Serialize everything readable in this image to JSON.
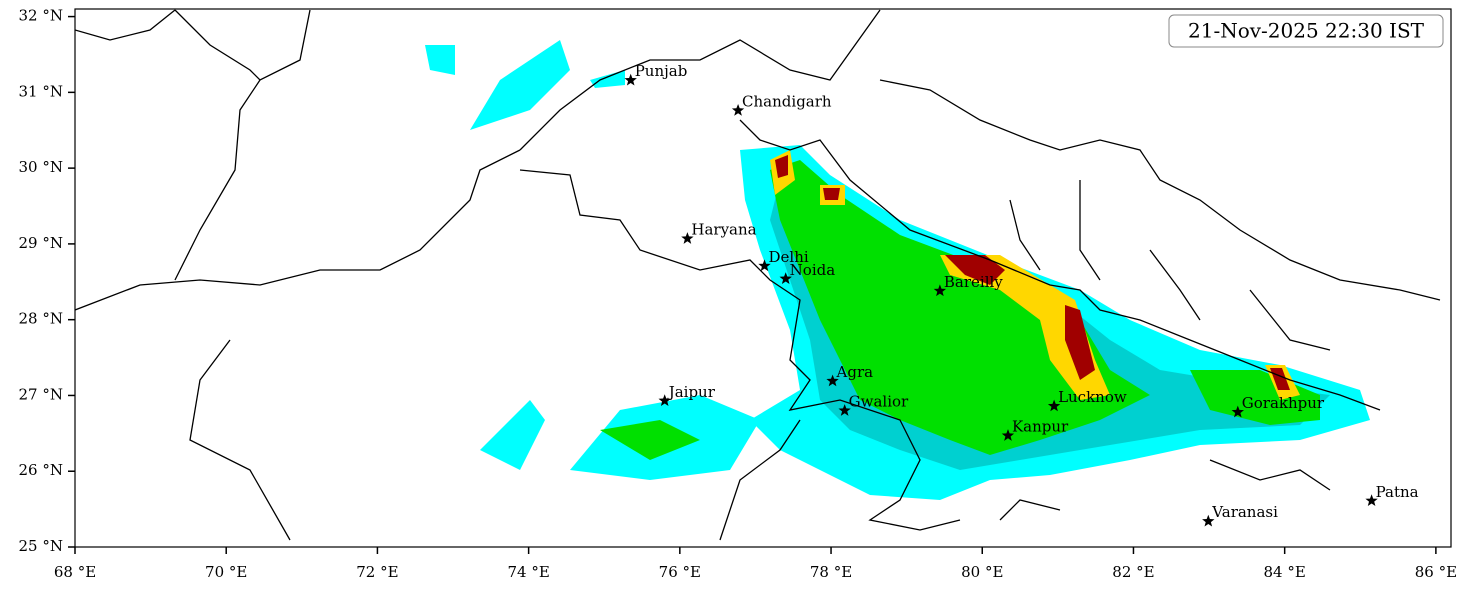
{
  "title": "21-Nov-2025 22:30 IST",
  "xlim": [
    68,
    86.2
  ],
  "ylim": [
    25,
    32.1
  ],
  "xticks": [
    {
      "value": 68,
      "label": "68 °E"
    },
    {
      "value": 70,
      "label": "70 °E"
    },
    {
      "value": 72,
      "label": "72 °E"
    },
    {
      "value": 74,
      "label": "74 °E"
    },
    {
      "value": 76,
      "label": "76 °E"
    },
    {
      "value": 78,
      "label": "78 °E"
    },
    {
      "value": 80,
      "label": "80 °E"
    },
    {
      "value": 82,
      "label": "82 °E"
    },
    {
      "value": 84,
      "label": "84 °E"
    },
    {
      "value": 86,
      "label": "86 °E"
    }
  ],
  "yticks": [
    {
      "value": 25,
      "label": "25 °N"
    },
    {
      "value": 26,
      "label": "26 °N"
    },
    {
      "value": 27,
      "label": "27 °N"
    },
    {
      "value": 28,
      "label": "28 °N"
    },
    {
      "value": 29,
      "label": "29 °N"
    },
    {
      "value": 30,
      "label": "30 °N"
    },
    {
      "value": 31,
      "label": "31 °N"
    },
    {
      "value": 32,
      "label": "32 °N"
    }
  ],
  "cities": [
    {
      "name": "Punjab",
      "lon": 75.35,
      "lat": 31.16
    },
    {
      "name": "Chandigarh",
      "lon": 76.77,
      "lat": 30.76
    },
    {
      "name": "Haryana",
      "lon": 76.1,
      "lat": 29.07
    },
    {
      "name": "Delhi",
      "lon": 77.12,
      "lat": 28.71
    },
    {
      "name": "Noida",
      "lon": 77.4,
      "lat": 28.54
    },
    {
      "name": "Bareilly",
      "lon": 79.44,
      "lat": 28.38
    },
    {
      "name": "Agra",
      "lon": 78.02,
      "lat": 27.19
    },
    {
      "name": "Jaipur",
      "lon": 75.8,
      "lat": 26.93
    },
    {
      "name": "Gwalior",
      "lon": 78.18,
      "lat": 26.8
    },
    {
      "name": "Lucknow",
      "lon": 80.95,
      "lat": 26.86
    },
    {
      "name": "Kanpur",
      "lon": 80.34,
      "lat": 26.47
    },
    {
      "name": "Gorakhpur",
      "lon": 83.38,
      "lat": 26.78
    },
    {
      "name": "Varanasi",
      "lon": 82.99,
      "lat": 25.34
    },
    {
      "name": "Patna",
      "lon": 85.15,
      "lat": 25.61
    }
  ]
}
